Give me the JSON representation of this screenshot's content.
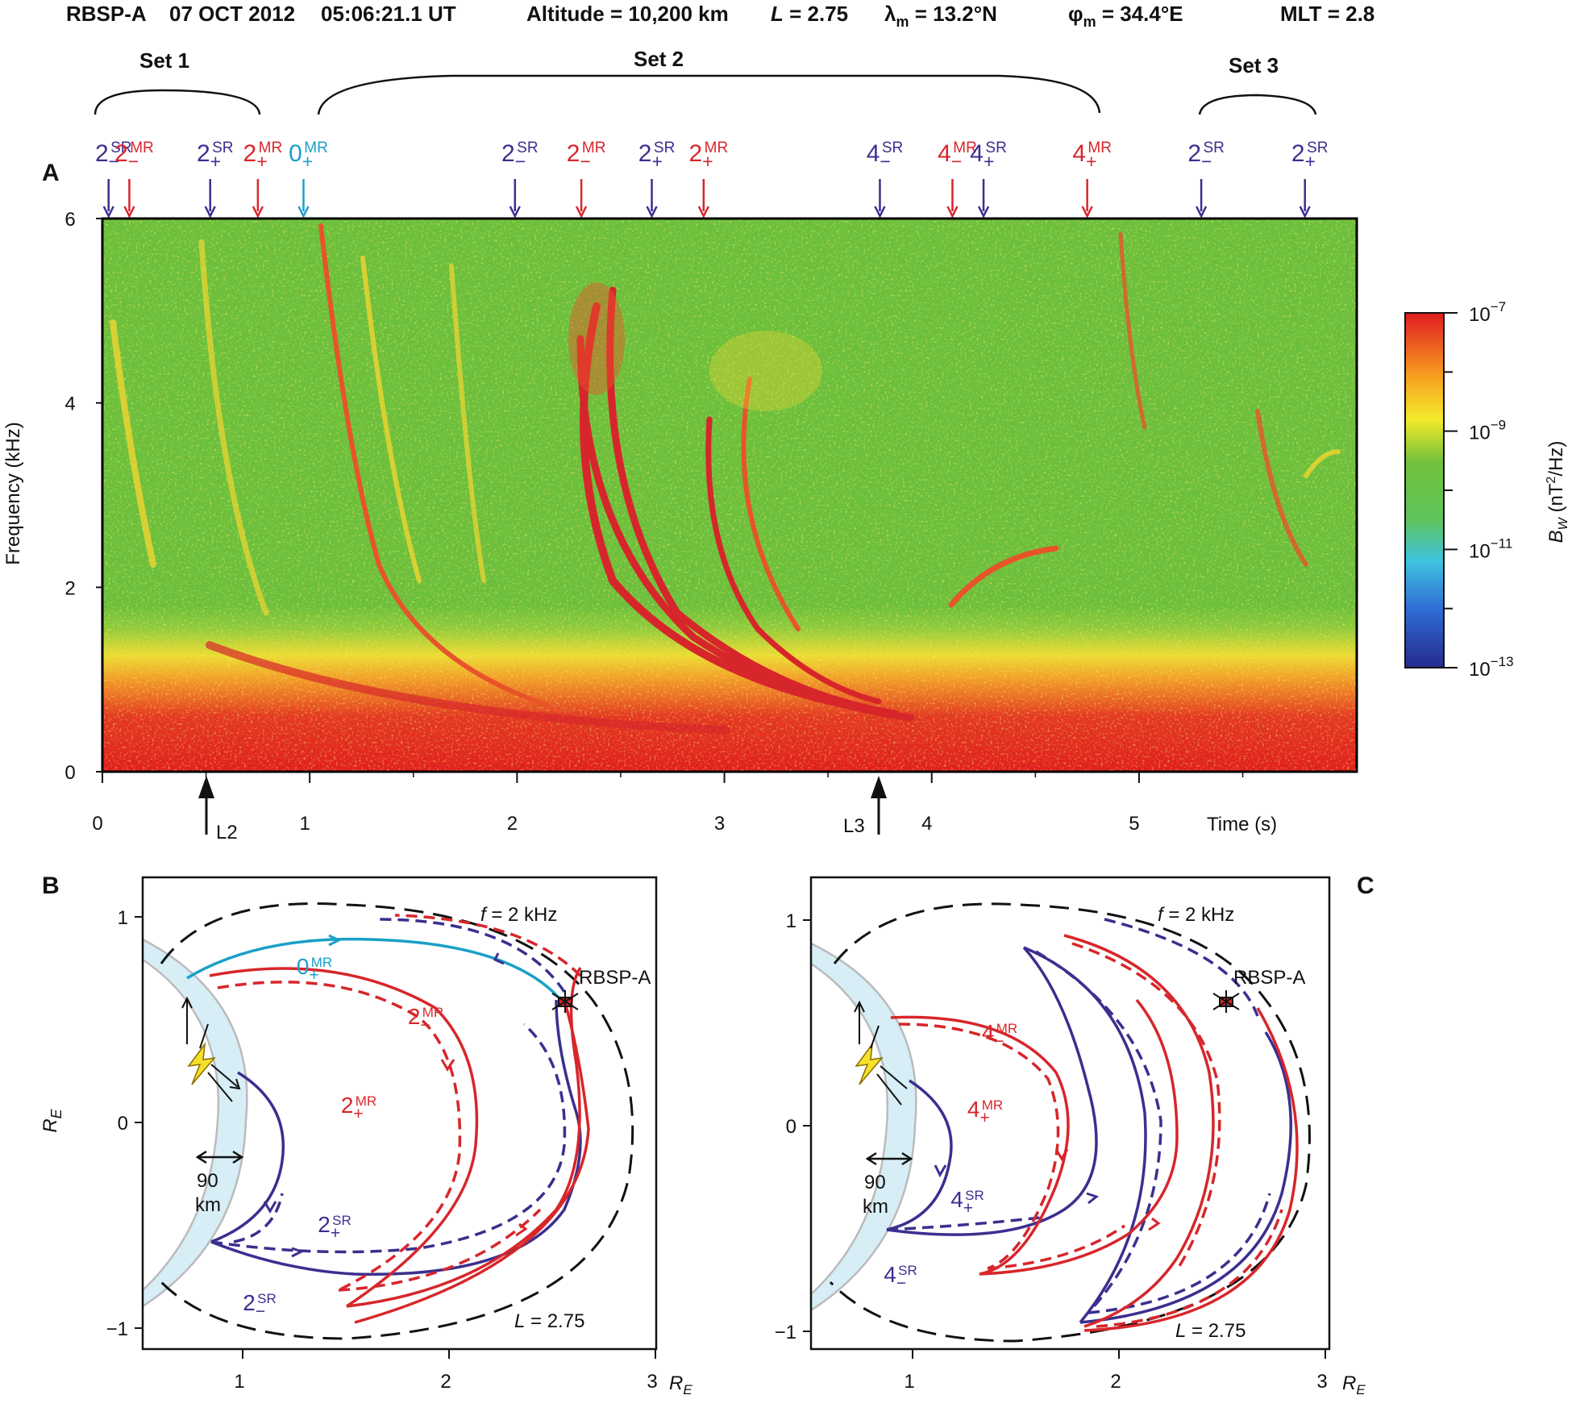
{
  "header": {
    "spacecraft": "RBSP-A",
    "date": "07 OCT 2012",
    "time": "05:06:21.1 UT",
    "altitude": "Altitude = 10,200 km",
    "l_shell_var": "L",
    "l_shell_val": " = 2.75",
    "lambda_sym": "λ",
    "lambda_sub": "m",
    "lambda_val": " = 13.2°N",
    "phi_sym": "φ",
    "phi_sub": "m",
    "phi_val": " = 34.4°E",
    "mlt": "MLT = 2.8"
  },
  "sets": [
    {
      "label": "Set 1"
    },
    {
      "label": "Set 2"
    },
    {
      "label": "Set 3"
    }
  ],
  "colors": {
    "sr": "#3b2f8f",
    "mr": "#d7262b",
    "zero": "#1aa0c8",
    "spec_bg": "#6cbf3c",
    "earth_fill": "#d7eef7"
  },
  "markers": [
    {
      "n": "2",
      "sub": "−",
      "sup": "SR",
      "color": "sr"
    },
    {
      "n": "2",
      "sub": "−",
      "sup": "MR",
      "color": "mr"
    },
    {
      "n": "2",
      "sub": "+",
      "sup": "SR",
      "color": "sr"
    },
    {
      "n": "2",
      "sub": "+",
      "sup": "MR",
      "color": "mr"
    },
    {
      "n": "0",
      "sub": "+",
      "sup": "MR",
      "color": "zero"
    },
    {
      "n": "2",
      "sub": "−",
      "sup": "SR",
      "color": "sr"
    },
    {
      "n": "2",
      "sub": "−",
      "sup": "MR",
      "color": "mr"
    },
    {
      "n": "2",
      "sub": "+",
      "sup": "SR",
      "color": "sr"
    },
    {
      "n": "2",
      "sub": "+",
      "sup": "MR",
      "color": "mr"
    },
    {
      "n": "4",
      "sub": "−",
      "sup": "SR",
      "color": "sr"
    },
    {
      "n": "4",
      "sub": "−",
      "sup": "MR",
      "color": "mr"
    },
    {
      "n": "4",
      "sub": "+",
      "sup": "SR",
      "color": "sr"
    },
    {
      "n": "4",
      "sub": "+",
      "sup": "MR",
      "color": "mr"
    },
    {
      "n": "2",
      "sub": "−",
      "sup": "SR",
      "color": "sr"
    },
    {
      "n": "2",
      "sub": "+",
      "sup": "SR",
      "color": "sr"
    }
  ],
  "panel_a": {
    "label": "A",
    "ylabel": "Frequency (kHz)",
    "xlabel": "Time (s)",
    "yticks": [
      "0",
      "2",
      "4",
      "6"
    ],
    "xticks": [
      "0",
      "1",
      "2",
      "3",
      "4",
      "5"
    ],
    "arrows": [
      {
        "label": "L2",
        "t": 0.5
      },
      {
        "label": "L3",
        "t": 3.74
      }
    ]
  },
  "chart_data": {
    "type": "heatmap",
    "title": "",
    "xlabel": "Time (s)",
    "ylabel": "Frequency (kHz)",
    "xlim": [
      0,
      6.05
    ],
    "ylim": [
      0,
      6
    ],
    "colorbar": {
      "label_var": "B",
      "label_sub": "W",
      "label_units": " (nT",
      "label_units2": "/Hz)",
      "label_exp": "2",
      "scale": "log",
      "ticks": [
        "10",
        "10",
        "10",
        "10"
      ],
      "exponents": [
        "−7",
        "−9",
        "−11",
        "−13"
      ],
      "range": [
        "1e-13",
        "1e-7"
      ]
    },
    "marker_times_s": [
      0.03,
      0.13,
      0.52,
      0.75,
      0.97,
      1.99,
      2.31,
      2.65,
      2.9,
      3.75,
      4.1,
      4.25,
      4.75,
      5.3,
      5.8
    ]
  },
  "panel_b": {
    "label": "B",
    "ylabel_var": "R",
    "ylabel_sub": "E",
    "yticks": [
      "1",
      "0",
      "−1"
    ],
    "xticks": [
      "1",
      "2",
      "3"
    ],
    "x_unit_var": "R",
    "x_unit_sub": "E",
    "freq_var": "f",
    "freq_val": " = 2 kHz",
    "lshell_var": "L",
    "lshell_val": " = 2.75",
    "spacecraft": "RBSP-A",
    "ionosphere_num": "90",
    "ionosphere_unit": "km",
    "ray_labels": [
      {
        "n": "0",
        "sub": "+",
        "sup": "MR",
        "color": "zero"
      },
      {
        "n": "2",
        "sub": "−",
        "sup": "MR",
        "color": "mr"
      },
      {
        "n": "2",
        "sub": "+",
        "sup": "MR",
        "color": "mr"
      },
      {
        "n": "2",
        "sub": "+",
        "sup": "SR",
        "color": "sr"
      },
      {
        "n": "2",
        "sub": "−",
        "sup": "SR",
        "color": "sr"
      }
    ]
  },
  "panel_c": {
    "label": "C",
    "yticks": [
      "1",
      "0",
      "−1"
    ],
    "xticks": [
      "1",
      "2",
      "3"
    ],
    "x_unit_var": "R",
    "x_unit_sub": "E",
    "freq_var": "f",
    "freq_val": " = 2 kHz",
    "lshell_var": "L",
    "lshell_val": " = 2.75",
    "spacecraft": "RBSP-A",
    "ionosphere_num": "90",
    "ionosphere_unit": "km",
    "ray_labels": [
      {
        "n": "4",
        "sub": "−",
        "sup": "MR",
        "color": "mr"
      },
      {
        "n": "4",
        "sub": "+",
        "sup": "MR",
        "color": "mr"
      },
      {
        "n": "4",
        "sub": "+",
        "sup": "SR",
        "color": "sr"
      },
      {
        "n": "4",
        "sub": "−",
        "sup": "SR",
        "color": "sr"
      }
    ]
  }
}
